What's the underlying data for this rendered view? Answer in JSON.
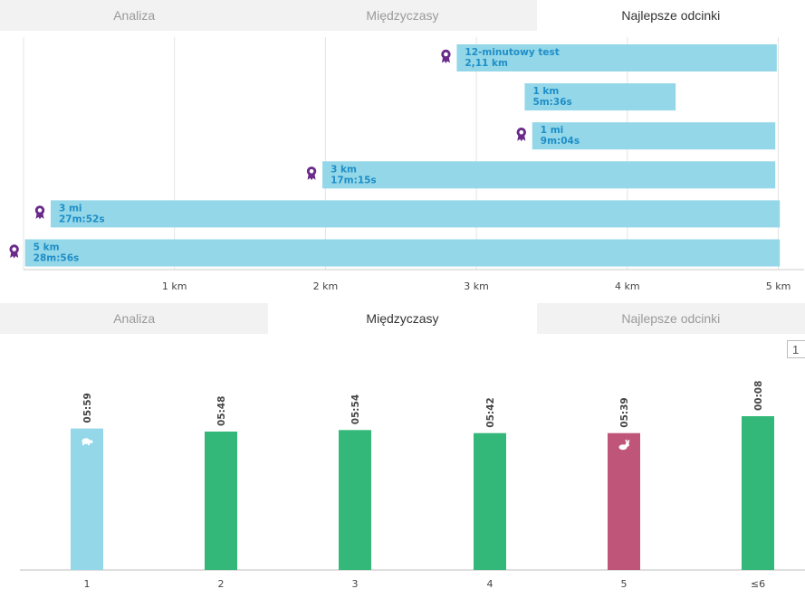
{
  "top_tabs": [
    {
      "label": "Analiza",
      "active": false
    },
    {
      "label": "Międzyczasy",
      "active": false
    },
    {
      "label": "Najlepsze odcinki",
      "active": true
    }
  ],
  "bottom_tabs": [
    {
      "label": "Analiza",
      "active": false
    },
    {
      "label": "Międzyczasy",
      "active": true
    },
    {
      "label": "Najlepsze odcinki",
      "active": false
    }
  ],
  "colors": {
    "segment_bar": "#93d7e8",
    "segment_text": "#1f8ec7",
    "award_icon": "#6a2a8a",
    "split_green": "#33b87a",
    "split_slow": "#93d7e8",
    "split_fast": "#bf567a",
    "grid": "#e4e4e4"
  },
  "chart_data": [
    {
      "type": "bar",
      "orientation": "horizontal",
      "x_ticks": [
        "1 km",
        "2 km",
        "3 km",
        "4 km",
        "5 km"
      ],
      "xlim": [
        0,
        5.0
      ],
      "segments": [
        {
          "name": "12-minutowy test",
          "value": "2,11 km",
          "start_km": 2.87,
          "end_km": 4.99,
          "award": true
        },
        {
          "name": "1 km",
          "value": "5m:36s",
          "start_km": 3.32,
          "end_km": 4.32,
          "award": false
        },
        {
          "name": "1 mi",
          "value": "9m:04s",
          "start_km": 3.37,
          "end_km": 4.98,
          "award": true
        },
        {
          "name": "3 km",
          "value": "17m:15s",
          "start_km": 1.98,
          "end_km": 4.98,
          "award": true
        },
        {
          "name": "3 mi",
          "value": "27m:52s",
          "start_km": 0.18,
          "end_km": 5.01,
          "award": true
        },
        {
          "name": "5 km",
          "value": "28m:56s",
          "start_km": 0.01,
          "end_km": 5.01,
          "award": true
        }
      ]
    },
    {
      "type": "bar",
      "categories": [
        "1",
        "2",
        "3",
        "4",
        "5",
        "≤6"
      ],
      "values": [
        359,
        348,
        354,
        342,
        339,
        8
      ],
      "labels": [
        "05:59",
        "05:48",
        "05:54",
        "05:42",
        "05:39",
        "00:08"
      ],
      "bar_values": [
        0.92,
        0.9,
        0.91,
        0.89,
        0.89,
        1.0
      ],
      "status": [
        "slow",
        "normal",
        "normal",
        "normal",
        "fast",
        "normal"
      ],
      "icons": [
        "turtle-icon",
        "",
        "",
        "",
        "rabbit-icon",
        ""
      ]
    }
  ],
  "pager": {
    "label": "1"
  }
}
